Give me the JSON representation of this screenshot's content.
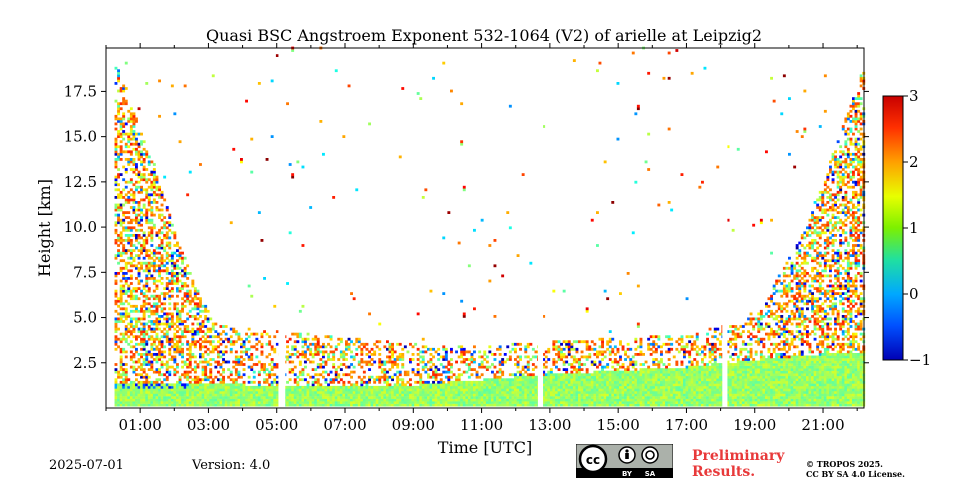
{
  "chart_data": {
    "type": "heatmap",
    "title": "Quasi BSC Angstroem Exponent 532-1064 (V2) of arielle at Leipzig2",
    "xlabel": "Time [UTC]",
    "ylabel": "Height [km]",
    "xlim_hours": [
      0.0,
      22.2
    ],
    "ylim_km": [
      0.0,
      19.9
    ],
    "x_tick_hours": [
      1,
      3,
      5,
      7,
      9,
      11,
      13,
      15,
      17,
      19,
      21
    ],
    "x_tick_labels": [
      "01:00",
      "03:00",
      "05:00",
      "07:00",
      "09:00",
      "11:00",
      "13:00",
      "15:00",
      "17:00",
      "19:00",
      "21:00"
    ],
    "y_ticks": [
      2.5,
      5.0,
      7.5,
      10.0,
      12.5,
      15.0,
      17.5
    ],
    "y_tick_labels": [
      "2.5",
      "5.0",
      "7.5",
      "10.0",
      "12.5",
      "15.0",
      "17.5"
    ],
    "colorbar": {
      "min": -1,
      "max": 3,
      "ticks": [
        -1,
        0,
        1,
        2,
        3
      ],
      "tick_labels": [
        "−1",
        "0",
        "1",
        "2",
        "3"
      ],
      "colormap": "jet"
    },
    "data_gaps_hours": [
      [
        0.0,
        0.25
      ],
      [
        5.05,
        5.25
      ],
      [
        12.65,
        12.8
      ],
      [
        18.05,
        18.2
      ]
    ],
    "layers": [
      {
        "name": "boundary-layer",
        "value": 1.1,
        "top_km": [
          [
            0.3,
            1.3
          ],
          [
            5,
            1.2
          ],
          [
            9,
            1.2
          ],
          [
            13,
            1.8
          ],
          [
            17,
            2.2
          ],
          [
            19,
            2.6
          ],
          [
            21.5,
            3.0
          ]
        ]
      },
      {
        "name": "upper-aerosol",
        "value": 2.0,
        "top_km": [
          [
            0.3,
            19.0
          ],
          [
            2.5,
            7.0
          ],
          [
            3.2,
            4.5
          ],
          [
            10,
            3.3
          ],
          [
            13,
            3.6
          ],
          [
            17,
            4.0
          ],
          [
            19,
            5.0
          ],
          [
            20.5,
            10.0
          ],
          [
            22.2,
            19.0
          ]
        ]
      }
    ]
  },
  "footer": {
    "date": "2025-07-01",
    "version": "Version: 4.0",
    "preliminary": [
      "Preliminary",
      "Results."
    ],
    "license": [
      "© TROPOS 2025.",
      "CC BY SA 4.0 License."
    ],
    "cc_badge": {
      "left": "BY",
      "right": "SA"
    }
  }
}
